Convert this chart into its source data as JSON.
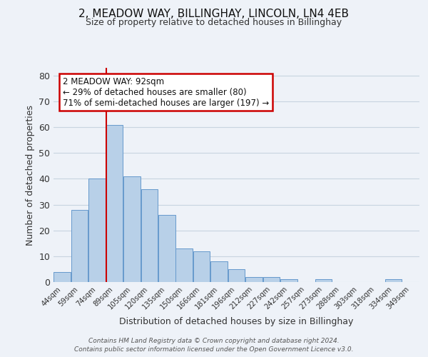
{
  "title1": "2, MEADOW WAY, BILLINGHAY, LINCOLN, LN4 4EB",
  "title2": "Size of property relative to detached houses in Billinghay",
  "xlabel": "Distribution of detached houses by size in Billinghay",
  "ylabel": "Number of detached properties",
  "bar_labels": [
    "44sqm",
    "59sqm",
    "74sqm",
    "89sqm",
    "105sqm",
    "120sqm",
    "135sqm",
    "150sqm",
    "166sqm",
    "181sqm",
    "196sqm",
    "212sqm",
    "227sqm",
    "242sqm",
    "257sqm",
    "273sqm",
    "288sqm",
    "303sqm",
    "318sqm",
    "334sqm",
    "349sqm"
  ],
  "bar_values": [
    4,
    28,
    40,
    61,
    41,
    36,
    26,
    13,
    12,
    8,
    5,
    2,
    2,
    1,
    0,
    1,
    0,
    0,
    0,
    1,
    0
  ],
  "bar_color": "#b8d0e8",
  "bar_edge_color": "#6699cc",
  "vline_color": "#cc0000",
  "annotation_box_text": "2 MEADOW WAY: 92sqm\n← 29% of detached houses are smaller (80)\n71% of semi-detached houses are larger (197) →",
  "annotation_box_color": "#cc0000",
  "annotation_box_facecolor": "white",
  "ylim": [
    0,
    83
  ],
  "yticks": [
    0,
    10,
    20,
    30,
    40,
    50,
    60,
    70,
    80
  ],
  "grid_color": "#c8d4e0",
  "background_color": "#eef2f8",
  "footer1": "Contains HM Land Registry data © Crown copyright and database right 2024.",
  "footer2": "Contains public sector information licensed under the Open Government Licence v3.0."
}
